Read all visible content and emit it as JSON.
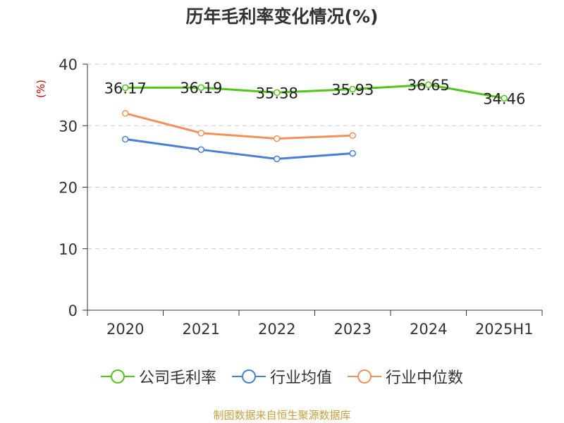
{
  "chart_data": {
    "type": "line",
    "title": "历年毛利率变化情况(%)",
    "ylabel": "(%)",
    "xlabel": "",
    "categories": [
      "2020",
      "2021",
      "2022",
      "2023",
      "2024",
      "2025H1"
    ],
    "ylim": [
      0,
      40
    ],
    "yticks": [
      0,
      10,
      20,
      30,
      40
    ],
    "grid": true,
    "legend_position": "bottom",
    "series": [
      {
        "name": "公司毛利率",
        "color": "#52c41a",
        "values": [
          36.17,
          36.19,
          35.38,
          35.93,
          36.65,
          34.46
        ],
        "labels": [
          "36.17",
          "36.19",
          "35.38",
          "35.93",
          "36.65",
          "34.46"
        ]
      },
      {
        "name": "行业均值",
        "color": "#4a7fd9",
        "values": [
          27.8,
          26.1,
          24.6,
          25.5,
          null,
          null
        ]
      },
      {
        "name": "行业中位数",
        "color": "#f5905a",
        "values": [
          32.0,
          28.8,
          27.9,
          28.4,
          null,
          null
        ]
      }
    ]
  },
  "source": "制图数据来自恒生聚源数据库"
}
